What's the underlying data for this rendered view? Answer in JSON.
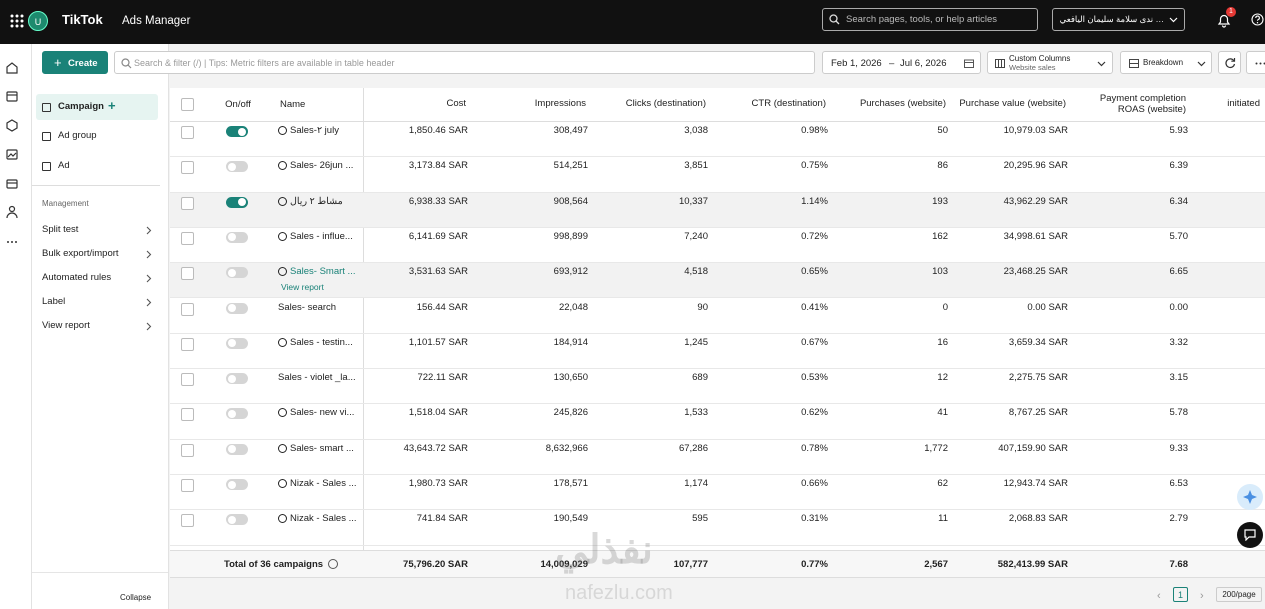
{
  "topbar": {
    "brand": "TikTok",
    "product": "Ads Manager",
    "avatar": "U",
    "search_placeholder": "Search pages, tools, or help articles",
    "account": "… ندى سلامة سليمان اليافعي للتجارة",
    "notifications": "1"
  },
  "sidebar": {
    "levels": [
      "Campaign",
      "Ad group",
      "Ad"
    ],
    "management_title": "Management",
    "management": [
      "Split test",
      "Bulk export/import",
      "Automated rules",
      "Label",
      "View report"
    ],
    "collapse": "Collapse"
  },
  "toolbar": {
    "create": "Create",
    "filter_placeholder": "Search & filter (/) | Tips: Metric filters are available in table header",
    "date_start": "Feb 1, 2026",
    "date_sep": "–",
    "date_end": "Jul 6, 2026",
    "columns_title": "Custom Columns",
    "columns_preset": "Website sales",
    "breakdown": "Breakdown"
  },
  "table": {
    "headers": [
      "On/off",
      "Name",
      "Cost",
      "Impressions",
      "Clicks (destination)",
      "CTR (destination)",
      "Purchases (website)",
      "Purchase value (website)",
      "Payment completion ROAS (website)",
      "initiated"
    ],
    "rows": [
      {
        "on": true,
        "icon": true,
        "name": "Sales-٢ july",
        "cells": [
          "1,850.46 SAR",
          "308,497",
          "3,038",
          "0.98%",
          "50",
          "10,979.03 SAR",
          "5.93"
        ]
      },
      {
        "on": false,
        "icon": true,
        "name": "Sales- 26jun ...",
        "cells": [
          "3,173.84 SAR",
          "514,251",
          "3,851",
          "0.75%",
          "86",
          "20,295.96 SAR",
          "6.39"
        ]
      },
      {
        "on": true,
        "icon": true,
        "highlighted": true,
        "name": "مشاط ٢ ريال",
        "cells": [
          "6,938.33 SAR",
          "908,564",
          "10,337",
          "1.14%",
          "193",
          "43,962.29 SAR",
          "6.34"
        ]
      },
      {
        "on": false,
        "icon": true,
        "name": "Sales - influe...",
        "cells": [
          "6,141.69 SAR",
          "998,899",
          "7,240",
          "0.72%",
          "162",
          "34,998.61 SAR",
          "5.70"
        ]
      },
      {
        "on": false,
        "icon": true,
        "highlighted": true,
        "name": "Sales- Smart ...",
        "link": "View report",
        "cells": [
          "3,531.63 SAR",
          "693,912",
          "4,518",
          "0.65%",
          "103",
          "23,468.25 SAR",
          "6.65"
        ]
      },
      {
        "on": false,
        "icon": false,
        "name": "Sales- search",
        "cells": [
          "156.44 SAR",
          "22,048",
          "90",
          "0.41%",
          "0",
          "0.00 SAR",
          "0.00"
        ]
      },
      {
        "on": false,
        "icon": true,
        "name": "Sales - testin...",
        "cells": [
          "1,101.57 SAR",
          "184,914",
          "1,245",
          "0.67%",
          "16",
          "3,659.34 SAR",
          "3.32"
        ]
      },
      {
        "on": false,
        "icon": false,
        "name": "Sales - violet _la...",
        "cells": [
          "722.11 SAR",
          "130,650",
          "689",
          "0.53%",
          "12",
          "2,275.75 SAR",
          "3.15"
        ]
      },
      {
        "on": false,
        "icon": true,
        "name": "Sales- new vi...",
        "cells": [
          "1,518.04 SAR",
          "245,826",
          "1,533",
          "0.62%",
          "41",
          "8,767.25 SAR",
          "5.78"
        ]
      },
      {
        "on": false,
        "icon": true,
        "name": "Sales- smart ...",
        "cells": [
          "43,643.72 SAR",
          "8,632,966",
          "67,286",
          "0.78%",
          "1,772",
          "407,159.90 SAR",
          "9.33"
        ]
      },
      {
        "on": false,
        "icon": true,
        "name": "Nizak - Sales ...",
        "cells": [
          "1,980.73 SAR",
          "178,571",
          "1,174",
          "0.66%",
          "62",
          "12,943.74 SAR",
          "6.53"
        ]
      },
      {
        "on": false,
        "icon": true,
        "name": "Nizak - Sales ...",
        "cells": [
          "741.84 SAR",
          "190,549",
          "595",
          "0.31%",
          "11",
          "2,068.83 SAR",
          "2.79"
        ]
      }
    ],
    "total": {
      "label": "Total of 36 campaigns",
      "cells": [
        "75,796.20 SAR",
        "14,009,029",
        "107,777",
        "0.77%",
        "2,567",
        "582,413.99 SAR",
        "7.68"
      ]
    }
  },
  "pagination": {
    "page": "1",
    "per_page": "200/page"
  },
  "watermark": {
    "arabic": "نفذلي",
    "latin": "nafezlu.com"
  }
}
